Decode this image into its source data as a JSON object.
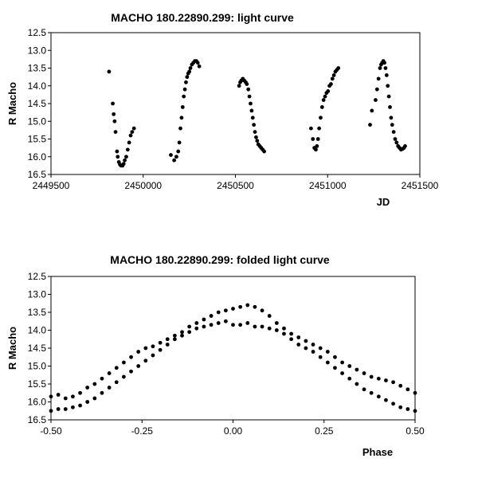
{
  "chart_data": [
    {
      "type": "scatter",
      "title": "MACHO 180.22890.299: light curve",
      "xlabel": "JD",
      "ylabel": "R Macho",
      "xlim": [
        2449500,
        2451500
      ],
      "ylim": [
        12.5,
        16.5
      ],
      "y_inverted": true,
      "grid": false,
      "x_ticks": [
        "2449500",
        "2450000",
        "2450500",
        "2451000",
        "2451500"
      ],
      "y_ticks": [
        "12.5",
        "13.0",
        "13.5",
        "14.0",
        "14.5",
        "15.0",
        "15.5",
        "16.0",
        "16.5"
      ],
      "segments": [
        [
          [
            2449815,
            13.6
          ],
          [
            2449835,
            14.5
          ],
          [
            2449840,
            14.8
          ],
          [
            2449845,
            15.0
          ],
          [
            2449850,
            15.3
          ],
          [
            2449858,
            15.85
          ],
          [
            2449862,
            16.0
          ],
          [
            2449868,
            16.15
          ],
          [
            2449874,
            16.22
          ],
          [
            2449880,
            16.25
          ],
          [
            2449888,
            16.25
          ],
          [
            2449894,
            16.2
          ],
          [
            2449900,
            16.1
          ],
          [
            2449908,
            16.0
          ],
          [
            2449916,
            15.8
          ],
          [
            2449924,
            15.6
          ],
          [
            2449932,
            15.4
          ],
          [
            2449940,
            15.3
          ],
          [
            2449950,
            15.2
          ]
        ],
        [
          [
            2450150,
            15.95
          ],
          [
            2450168,
            16.1
          ],
          [
            2450180,
            16.0
          ],
          [
            2450190,
            15.85
          ],
          [
            2450196,
            15.6
          ],
          [
            2450202,
            15.2
          ],
          [
            2450208,
            14.9
          ],
          [
            2450214,
            14.6
          ],
          [
            2450220,
            14.3
          ],
          [
            2450226,
            14.1
          ],
          [
            2450232,
            13.9
          ],
          [
            2450238,
            13.75
          ],
          [
            2450244,
            13.65
          ],
          [
            2450250,
            13.6
          ],
          [
            2450256,
            13.5
          ],
          [
            2450264,
            13.4
          ],
          [
            2450272,
            13.35
          ],
          [
            2450280,
            13.3
          ],
          [
            2450288,
            13.3
          ],
          [
            2450296,
            13.35
          ],
          [
            2450304,
            13.45
          ]
        ],
        [
          [
            2450520,
            14.0
          ],
          [
            2450526,
            13.9
          ],
          [
            2450532,
            13.85
          ],
          [
            2450540,
            13.8
          ],
          [
            2450548,
            13.85
          ],
          [
            2450556,
            13.9
          ],
          [
            2450562,
            13.95
          ],
          [
            2450570,
            14.1
          ],
          [
            2450576,
            14.3
          ],
          [
            2450582,
            14.5
          ],
          [
            2450588,
            14.7
          ],
          [
            2450594,
            14.9
          ],
          [
            2450600,
            15.1
          ],
          [
            2450606,
            15.3
          ],
          [
            2450612,
            15.45
          ],
          [
            2450618,
            15.55
          ],
          [
            2450624,
            15.65
          ],
          [
            2450632,
            15.7
          ],
          [
            2450640,
            15.75
          ],
          [
            2450648,
            15.8
          ],
          [
            2450656,
            15.85
          ]
        ],
        [
          [
            2450910,
            15.2
          ],
          [
            2450920,
            15.5
          ],
          [
            2450928,
            15.75
          ],
          [
            2450936,
            15.8
          ],
          [
            2450942,
            15.7
          ],
          [
            2450948,
            15.5
          ],
          [
            2450954,
            15.2
          ],
          [
            2450962,
            14.9
          ],
          [
            2450970,
            14.6
          ],
          [
            2450978,
            14.4
          ],
          [
            2450986,
            14.3
          ],
          [
            2450994,
            14.2
          ],
          [
            2451002,
            14.15
          ],
          [
            2451010,
            14.0
          ],
          [
            2451018,
            13.95
          ],
          [
            2451026,
            13.8
          ],
          [
            2451034,
            13.7
          ],
          [
            2451042,
            13.6
          ],
          [
            2451050,
            13.55
          ],
          [
            2451058,
            13.5
          ]
        ],
        [
          [
            2451230,
            15.1
          ],
          [
            2451240,
            14.7
          ],
          [
            2451260,
            14.4
          ],
          [
            2451268,
            14.1
          ],
          [
            2451276,
            13.8
          ],
          [
            2451284,
            13.5
          ],
          [
            2451290,
            13.4
          ],
          [
            2451296,
            13.35
          ],
          [
            2451302,
            13.3
          ],
          [
            2451308,
            13.35
          ],
          [
            2451314,
            13.5
          ],
          [
            2451320,
            13.7
          ],
          [
            2451326,
            14.0
          ],
          [
            2451332,
            14.3
          ],
          [
            2451338,
            14.6
          ],
          [
            2451344,
            14.9
          ],
          [
            2451350,
            15.1
          ],
          [
            2451358,
            15.3
          ],
          [
            2451366,
            15.5
          ],
          [
            2451374,
            15.6
          ],
          [
            2451382,
            15.7
          ],
          [
            2451390,
            15.75
          ],
          [
            2451398,
            15.8
          ],
          [
            2451406,
            15.78
          ],
          [
            2451414,
            15.75
          ],
          [
            2451420,
            15.7
          ]
        ]
      ]
    },
    {
      "type": "scatter",
      "title": "MACHO 180.22890.299: folded light curve",
      "xlabel": "Phase",
      "ylabel": "R Macho",
      "xlim": [
        -0.5,
        0.5
      ],
      "ylim": [
        12.5,
        16.5
      ],
      "y_inverted": true,
      "grid": false,
      "x_ticks": [
        "-0.50",
        "-0.25",
        "0.00",
        "0.25",
        "0.50"
      ],
      "y_ticks": [
        "12.5",
        "13.0",
        "13.5",
        "14.0",
        "14.5",
        "15.0",
        "15.5",
        "16.0",
        "16.5"
      ],
      "branches": [
        [
          [
            -0.5,
            15.85
          ],
          [
            -0.48,
            15.8
          ],
          [
            -0.46,
            15.9
          ],
          [
            -0.44,
            15.85
          ],
          [
            -0.42,
            15.75
          ],
          [
            -0.4,
            15.6
          ],
          [
            -0.38,
            15.5
          ],
          [
            -0.36,
            15.35
          ],
          [
            -0.34,
            15.2
          ],
          [
            -0.32,
            15.05
          ],
          [
            -0.3,
            14.9
          ],
          [
            -0.28,
            14.75
          ],
          [
            -0.26,
            14.6
          ],
          [
            -0.24,
            14.5
          ],
          [
            -0.22,
            14.45
          ],
          [
            -0.2,
            14.35
          ],
          [
            -0.18,
            14.25
          ],
          [
            -0.16,
            14.15
          ],
          [
            -0.14,
            14.05
          ],
          [
            -0.12,
            13.9
          ],
          [
            -0.1,
            13.8
          ],
          [
            -0.08,
            13.7
          ],
          [
            -0.06,
            13.6
          ],
          [
            -0.04,
            13.5
          ],
          [
            -0.02,
            13.45
          ],
          [
            0.0,
            13.4
          ],
          [
            0.02,
            13.35
          ],
          [
            0.04,
            13.3
          ],
          [
            0.06,
            13.35
          ],
          [
            0.08,
            13.45
          ],
          [
            0.1,
            13.6
          ],
          [
            0.12,
            13.8
          ],
          [
            0.14,
            13.95
          ],
          [
            0.16,
            14.1
          ],
          [
            0.18,
            14.2
          ],
          [
            0.2,
            14.3
          ],
          [
            0.22,
            14.4
          ],
          [
            0.24,
            14.5
          ],
          [
            0.26,
            14.6
          ],
          [
            0.28,
            14.75
          ],
          [
            0.3,
            14.9
          ],
          [
            0.32,
            15.0
          ],
          [
            0.34,
            15.1
          ],
          [
            0.36,
            15.2
          ],
          [
            0.38,
            15.3
          ],
          [
            0.4,
            15.35
          ],
          [
            0.42,
            15.4
          ],
          [
            0.44,
            15.45
          ],
          [
            0.46,
            15.55
          ],
          [
            0.48,
            15.65
          ],
          [
            0.5,
            15.75
          ]
        ],
        [
          [
            -0.5,
            16.25
          ],
          [
            -0.48,
            16.2
          ],
          [
            -0.46,
            16.2
          ],
          [
            -0.44,
            16.15
          ],
          [
            -0.42,
            16.1
          ],
          [
            -0.4,
            16.0
          ],
          [
            -0.38,
            15.9
          ],
          [
            -0.36,
            15.75
          ],
          [
            -0.34,
            15.6
          ],
          [
            -0.32,
            15.45
          ],
          [
            -0.3,
            15.3
          ],
          [
            -0.28,
            15.15
          ],
          [
            -0.26,
            15.0
          ],
          [
            -0.24,
            14.85
          ],
          [
            -0.22,
            14.7
          ],
          [
            -0.2,
            14.55
          ],
          [
            -0.18,
            14.4
          ],
          [
            -0.16,
            14.25
          ],
          [
            -0.14,
            14.15
          ],
          [
            -0.12,
            14.05
          ],
          [
            -0.1,
            13.95
          ],
          [
            -0.08,
            13.9
          ],
          [
            -0.06,
            13.85
          ],
          [
            -0.04,
            13.8
          ],
          [
            -0.02,
            13.75
          ],
          [
            0.0,
            13.85
          ],
          [
            0.02,
            13.85
          ],
          [
            0.04,
            13.8
          ],
          [
            0.06,
            13.9
          ],
          [
            0.08,
            13.9
          ],
          [
            0.1,
            13.95
          ],
          [
            0.12,
            14.0
          ],
          [
            0.14,
            14.1
          ],
          [
            0.16,
            14.25
          ],
          [
            0.18,
            14.4
          ],
          [
            0.2,
            14.5
          ],
          [
            0.22,
            14.6
          ],
          [
            0.24,
            14.75
          ],
          [
            0.26,
            14.9
          ],
          [
            0.28,
            15.05
          ],
          [
            0.3,
            15.2
          ],
          [
            0.32,
            15.35
          ],
          [
            0.34,
            15.5
          ],
          [
            0.36,
            15.65
          ],
          [
            0.38,
            15.75
          ],
          [
            0.4,
            15.85
          ],
          [
            0.42,
            15.95
          ],
          [
            0.44,
            16.05
          ],
          [
            0.46,
            16.15
          ],
          [
            0.48,
            16.2
          ],
          [
            0.5,
            16.25
          ]
        ]
      ]
    }
  ]
}
